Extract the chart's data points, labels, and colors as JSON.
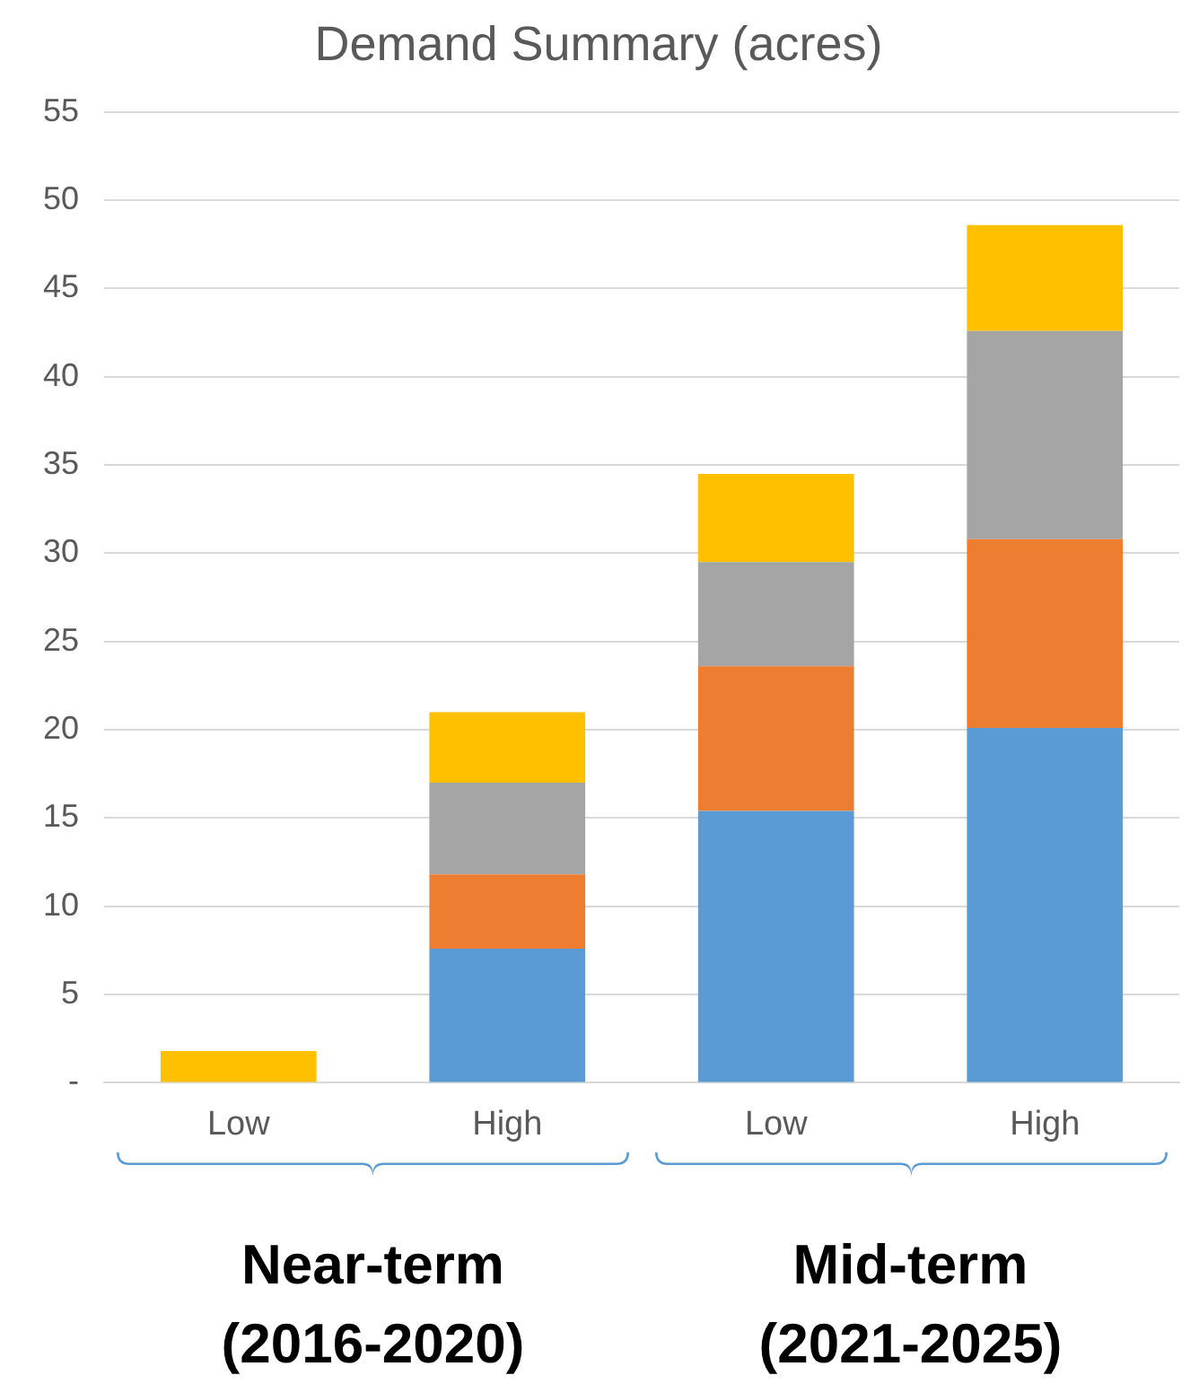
{
  "chart_data": {
    "type": "bar",
    "title": "Demand Summary (acres)",
    "categories": [
      "Low",
      "High",
      "Low",
      "High"
    ],
    "stacked": true,
    "series": [
      {
        "color": "#5b9bd5",
        "values": [
          0,
          7.6,
          15.4,
          20.1
        ]
      },
      {
        "color": "#ed7d31",
        "values": [
          0,
          4.2,
          8.2,
          10.7
        ]
      },
      {
        "color": "#a5a5a5",
        "values": [
          0,
          5.2,
          5.9,
          11.8
        ]
      },
      {
        "color": "#ffc000",
        "values": [
          1.8,
          4.0,
          5.0,
          6.0
        ]
      }
    ],
    "ylim": [
      0,
      55
    ],
    "yticks": [
      {
        "value": 0,
        "label": "-"
      },
      5,
      10,
      15,
      20,
      25,
      30,
      35,
      40,
      45,
      50,
      55
    ],
    "grid": "y",
    "legend": false,
    "annotations": [
      "Near-term\n(2016-2020)",
      "Mid-term\n(2021-2025)"
    ]
  }
}
